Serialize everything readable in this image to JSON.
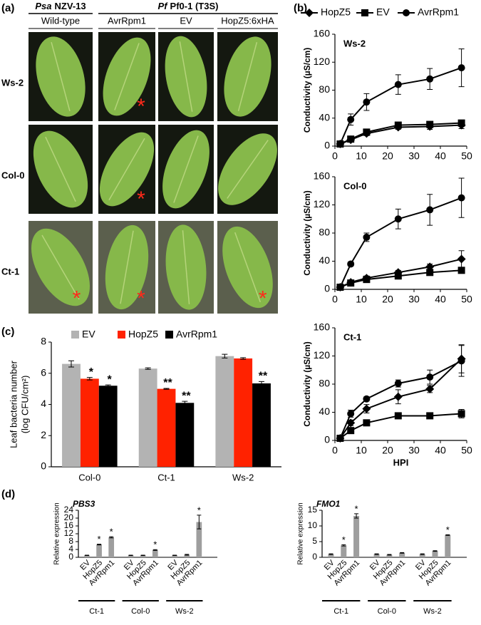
{
  "panel_labels": [
    "(a)",
    "(b)",
    "(c)",
    "(d)"
  ],
  "photo_grid": {
    "group_headers": [
      {
        "italic": "Psa",
        "text": "NZV-13"
      },
      {
        "italic": "Pf",
        "text": "Pf0-1 (T3S)"
      }
    ],
    "columns": [
      "Wild-type",
      "AvrRpm1",
      "EV",
      "HopZ5:6xHA"
    ],
    "rows": [
      {
        "label": "Ws-2",
        "marks": [
          null,
          "*",
          null,
          null
        ]
      },
      {
        "label": "Col-0",
        "marks": [
          null,
          "*",
          null,
          null
        ]
      },
      {
        "label": "Ct-1",
        "marks": [
          "*",
          "*",
          null,
          "*"
        ]
      }
    ]
  },
  "chart_data": [
    {
      "type": "line",
      "title": "Ws-2",
      "legend": "top",
      "y_label": "Conductivity (µS/cm)",
      "x": [
        2,
        6,
        12,
        24,
        36,
        48
      ],
      "xlim": [
        0,
        50
      ],
      "xticks": [
        0,
        10,
        20,
        30,
        40,
        50
      ],
      "ylim": [
        0,
        160
      ],
      "yticks": [
        0,
        40,
        80,
        120,
        160
      ],
      "series": [
        {
          "name": "HopZ5",
          "marker": "diamond",
          "color": "#000000",
          "values": [
            3,
            9,
            18,
            27,
            28,
            30
          ],
          "errors": [
            1,
            2,
            3,
            3,
            4,
            5
          ]
        },
        {
          "name": "EV",
          "marker": "square",
          "color": "#000000",
          "values": [
            3,
            10,
            20,
            30,
            31,
            33
          ],
          "errors": [
            1,
            2,
            2,
            3,
            3,
            3
          ]
        },
        {
          "name": "AvrRpm1",
          "marker": "circle",
          "color": "#000000",
          "values": [
            3,
            38,
            63,
            88,
            96,
            112
          ],
          "errors": [
            1,
            8,
            12,
            14,
            15,
            27
          ]
        }
      ]
    },
    {
      "type": "line",
      "title": "Col-0",
      "y_label": "Conductivity (µS/cm)",
      "x": [
        2,
        6,
        12,
        24,
        36,
        48
      ],
      "xlim": [
        0,
        50
      ],
      "xticks": [
        0,
        10,
        20,
        30,
        40,
        50
      ],
      "ylim": [
        0,
        160
      ],
      "yticks": [
        0,
        40,
        80,
        120,
        160
      ],
      "series": [
        {
          "marker": "diamond",
          "color": "#000000",
          "values": [
            3,
            10,
            16,
            24,
            32,
            43
          ],
          "errors": [
            1,
            2,
            3,
            3,
            4,
            12
          ]
        },
        {
          "marker": "square",
          "color": "#000000",
          "values": [
            3,
            9,
            14,
            19,
            24,
            27
          ],
          "errors": [
            1,
            2,
            2,
            3,
            3,
            4
          ]
        },
        {
          "marker": "circle",
          "color": "#000000",
          "values": [
            3,
            36,
            74,
            100,
            113,
            130
          ],
          "errors": [
            1,
            3,
            6,
            14,
            22,
            28
          ]
        }
      ]
    },
    {
      "type": "line",
      "title": "Ct-1",
      "y_label": "Conductivity (µS/cm)",
      "x_label": "HPI",
      "x": [
        2,
        6,
        12,
        24,
        36,
        48
      ],
      "xlim": [
        0,
        50
      ],
      "xticks": [
        0,
        10,
        20,
        30,
        40,
        50
      ],
      "ylim": [
        0,
        160
      ],
      "yticks": [
        0,
        40,
        80,
        120,
        160
      ],
      "series": [
        {
          "marker": "diamond",
          "color": "#000000",
          "values": [
            3,
            25,
            45,
            62,
            73,
            116
          ],
          "errors": [
            1,
            4,
            6,
            10,
            5,
            20
          ]
        },
        {
          "marker": "square",
          "color": "#000000",
          "values": [
            3,
            14,
            25,
            35,
            35,
            38
          ],
          "errors": [
            1,
            3,
            3,
            3,
            3,
            6
          ]
        },
        {
          "marker": "circle",
          "color": "#000000",
          "values": [
            3,
            38,
            59,
            81,
            90,
            113
          ],
          "errors": [
            1,
            5,
            3,
            5,
            10,
            22
          ]
        }
      ]
    },
    {
      "type": "bar",
      "legend": "top",
      "y_label": [
        "Leaf bacteria number",
        "(log CFU/cm²)"
      ],
      "categories": [
        "Col-0",
        "Ct-1",
        "Ws-2"
      ],
      "ylim": [
        0,
        8
      ],
      "yticks": [
        0,
        2,
        4,
        6,
        8
      ],
      "series": [
        {
          "name": "EV",
          "color": "#b3b3b3",
          "values": [
            6.6,
            6.3,
            7.1
          ],
          "errors": [
            0.2,
            0.05,
            0.12
          ],
          "annotations": [
            null,
            null,
            null
          ]
        },
        {
          "name": "HopZ5",
          "color": "#ff2200",
          "values": [
            5.65,
            5.0,
            6.95
          ],
          "errors": [
            0.08,
            0.03,
            0.05
          ],
          "annotations": [
            "*",
            "**",
            null
          ]
        },
        {
          "name": "AvrRpm1",
          "color": "#000000",
          "values": [
            5.2,
            4.1,
            5.35
          ],
          "errors": [
            0.05,
            0.1,
            0.12
          ],
          "annotations": [
            "*",
            "**",
            "**"
          ]
        }
      ]
    },
    {
      "type": "grouped_bar",
      "title": "PBS3",
      "y_label": "Relative expression",
      "categories": [
        "EV",
        "HopZ5",
        "AvrRpm1",
        "EV",
        "HopZ5",
        "AvrRpm1",
        "EV",
        "HopZ5",
        "AvrRpm1"
      ],
      "groups": [
        "Ct-1",
        "Col-0",
        "Ws-2"
      ],
      "ylim": [
        0,
        24
      ],
      "yticks": [
        0,
        4,
        8,
        12,
        16,
        20,
        24
      ],
      "series": [
        {
          "color": "#9e9e9e",
          "values": [
            1,
            6.5,
            10.2,
            1,
            1,
            3.7,
            1,
            1.3,
            18
          ],
          "errors": [
            0.1,
            0.2,
            0.3,
            0.1,
            0.1,
            0.2,
            0.1,
            0.2,
            3.5
          ],
          "annotations": [
            null,
            "*",
            "*",
            null,
            null,
            "*",
            null,
            null,
            "*"
          ]
        }
      ]
    },
    {
      "type": "grouped_bar",
      "title": "FMO1",
      "y_label": "Relative expression",
      "categories": [
        "EV",
        "HopZ5",
        "AvrRpm1",
        "EV",
        "HopZ5",
        "AvrRpm1",
        "EV",
        "HopZ5",
        "AvrRpm1"
      ],
      "groups": [
        "Ct-1",
        "Col-0",
        "Ws-2"
      ],
      "ylim": [
        0,
        15
      ],
      "yticks": [
        0,
        5,
        10,
        15
      ],
      "series": [
        {
          "color": "#9e9e9e",
          "values": [
            1,
            3.8,
            13.2,
            1,
            0.8,
            1.4,
            1,
            2,
            7.1
          ],
          "errors": [
            0.1,
            0.2,
            0.7,
            0.1,
            0.1,
            0.1,
            0.1,
            0.1,
            0.1
          ],
          "annotations": [
            null,
            "*",
            "*",
            null,
            null,
            null,
            null,
            null,
            "*"
          ]
        }
      ]
    }
  ]
}
